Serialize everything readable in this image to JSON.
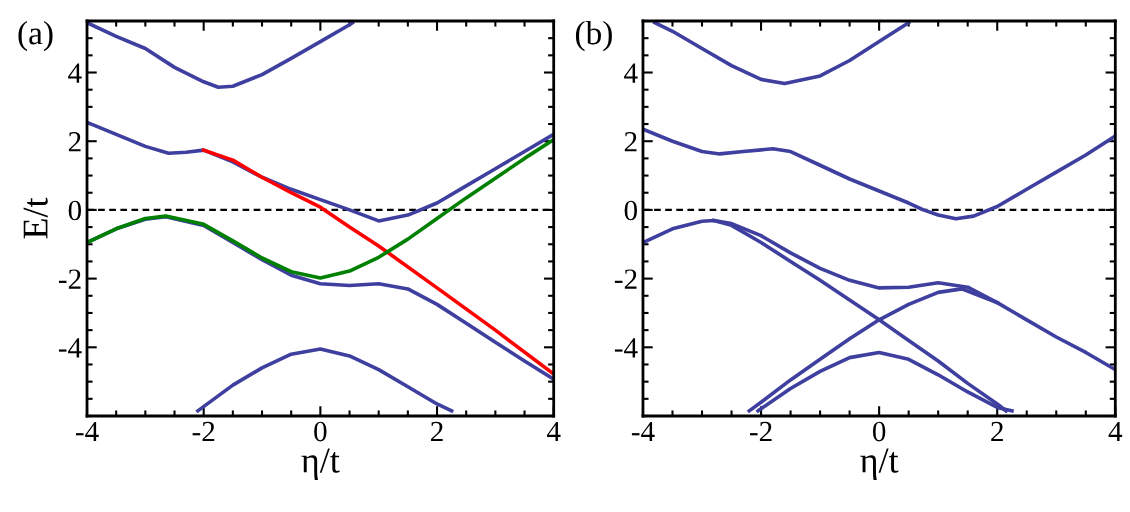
{
  "chart_data": [
    {
      "type": "line",
      "title": "(a)",
      "xlabel": "η/t",
      "ylabel": "E/t",
      "xlim": [
        -4,
        4
      ],
      "ylim": [
        -6,
        5.5
      ],
      "xticks": [
        -4,
        -2,
        0,
        2,
        4
      ],
      "yticks": [
        -4,
        -2,
        0,
        2,
        4
      ],
      "grid": false,
      "legend": false,
      "ref_lines": [
        {
          "axis": "y",
          "value": 0,
          "color": "#000000",
          "line_style": "dashed"
        }
      ],
      "series": [
        {
          "color": "#3f3f9f",
          "x": [
            -4,
            -3.5,
            -3,
            -2.5,
            -2,
            -1.75,
            -1.5,
            -1,
            -0.5,
            0,
            0.5,
            0.55
          ],
          "values": [
            5.45,
            5.05,
            4.7,
            4.15,
            3.73,
            3.57,
            3.6,
            3.94,
            4.41,
            4.9,
            5.39,
            5.45
          ]
        },
        {
          "color": "#3f3f9f",
          "x": [
            -4,
            -3.5,
            -3,
            -2.6,
            -2.3,
            -2,
            -1.5,
            -1,
            -0.5,
            0,
            0.5,
            1,
            1.5,
            2,
            2.5,
            3,
            3.5,
            4
          ],
          "values": [
            2.55,
            2.2,
            1.85,
            1.65,
            1.68,
            1.74,
            1.4,
            0.95,
            0.6,
            0.3,
            0.0,
            -0.32,
            -0.15,
            0.2,
            0.7,
            1.2,
            1.7,
            2.2
          ]
        },
        {
          "color": "#3f3f9f",
          "x": [
            -4,
            -3.5,
            -3,
            -2.65,
            -2,
            -1.5,
            -1,
            -0.5,
            0,
            0.5,
            1,
            1.5,
            2,
            2.5,
            3,
            3.5,
            4
          ],
          "values": [
            -0.95,
            -0.55,
            -0.27,
            -0.2,
            -0.45,
            -0.95,
            -1.45,
            -1.9,
            -2.15,
            -2.2,
            -2.15,
            -2.3,
            -2.75,
            -3.3,
            -3.85,
            -4.4,
            -4.93
          ]
        },
        {
          "color": "#3f3f9f",
          "x": [
            -2.1,
            -1.5,
            -1,
            -0.5,
            0,
            0.5,
            1,
            1.5,
            2,
            2.25
          ],
          "values": [
            -5.85,
            -5.1,
            -4.6,
            -4.2,
            -4.05,
            -4.25,
            -4.65,
            -5.15,
            -5.65,
            -5.85
          ]
        },
        {
          "color": "#ff0000",
          "x": [
            -2,
            -1.5,
            -1,
            -0.5,
            0,
            0.5,
            1,
            2,
            3,
            4
          ],
          "values": [
            1.74,
            1.45,
            0.95,
            0.5,
            0.08,
            -0.5,
            -1.05,
            -2.27,
            -3.5,
            -4.78
          ]
        },
        {
          "color": "#008000",
          "x": [
            -4,
            -3.5,
            -3,
            -2.65,
            -2,
            -1.5,
            -1,
            -0.5,
            0,
            0.5,
            1,
            1.5,
            2,
            2.5,
            3,
            3.5,
            4
          ],
          "values": [
            -0.95,
            -0.55,
            -0.25,
            -0.18,
            -0.42,
            -0.9,
            -1.4,
            -1.8,
            -1.98,
            -1.78,
            -1.38,
            -0.85,
            -0.25,
            0.35,
            0.92,
            1.5,
            2.05
          ]
        }
      ]
    },
    {
      "type": "line",
      "title": "(b)",
      "xlabel": "η/t",
      "xlim": [
        -4,
        4
      ],
      "ylim": [
        -6,
        5.5
      ],
      "xticks": [
        -4,
        -2,
        0,
        2,
        4
      ],
      "yticks": [
        -4,
        -2,
        0,
        2,
        4
      ],
      "grid": false,
      "legend": false,
      "ref_lines": [
        {
          "axis": "y",
          "value": 0,
          "color": "#000000",
          "line_style": "dashed"
        }
      ],
      "series": [
        {
          "color": "#3f3f9f",
          "x": [
            -3.8,
            -3.5,
            -3,
            -2.5,
            -2,
            -1.6,
            -1,
            -0.5,
            0,
            0.5
          ],
          "values": [
            5.45,
            5.2,
            4.7,
            4.2,
            3.8,
            3.68,
            3.9,
            4.35,
            4.9,
            5.45
          ]
        },
        {
          "color": "#3f3f9f",
          "x": [
            -4,
            -3.5,
            -3,
            -2.7,
            -2.3,
            -1.8,
            -1.5,
            -1,
            -0.5,
            0,
            0.5,
            0.75,
            1,
            1.3,
            1.6,
            2,
            2.5,
            3,
            3.5,
            4
          ],
          "values": [
            2.35,
            2.0,
            1.7,
            1.63,
            1.7,
            1.78,
            1.7,
            1.3,
            0.9,
            0.55,
            0.2,
            0,
            -0.15,
            -0.26,
            -0.18,
            0.1,
            0.6,
            1.1,
            1.6,
            2.15
          ]
        },
        {
          "color": "#3f3f9f",
          "x": [
            -4,
            -3.5,
            -3,
            -2.8,
            -2.5,
            -2,
            -1.5,
            -1,
            -0.5,
            0,
            0.5,
            1,
            1.5,
            2,
            2.5,
            3,
            3.5,
            4
          ],
          "values": [
            -0.95,
            -0.55,
            -0.33,
            -0.31,
            -0.4,
            -0.75,
            -1.25,
            -1.7,
            -2.05,
            -2.27,
            -2.25,
            -2.12,
            -2.25,
            -2.7,
            -3.2,
            -3.7,
            -4.15,
            -4.65
          ]
        },
        {
          "color": "#3f3f9f",
          "x": [
            -2.05,
            -1.5,
            -1,
            -0.5,
            0,
            0.5,
            1,
            1.5,
            2,
            2.25
          ],
          "values": [
            -5.85,
            -5.2,
            -4.7,
            -4.3,
            -4.15,
            -4.35,
            -4.8,
            -5.3,
            -5.75,
            -5.85
          ]
        },
        {
          "color": "#3f3f9f",
          "x": [
            -2.8,
            -2.5,
            -2,
            -1.5,
            -1,
            -0.5,
            0,
            0.5,
            1,
            1.5,
            2,
            2.15
          ],
          "values": [
            -0.31,
            -0.45,
            -0.95,
            -1.5,
            -2.05,
            -2.62,
            -3.2,
            -3.8,
            -4.4,
            -5.05,
            -5.65,
            -5.85
          ]
        },
        {
          "color": "#3f3f9f",
          "x": [
            -2.2,
            -2,
            -1.5,
            -1,
            -0.5,
            0,
            0.5,
            1,
            1.4,
            2
          ],
          "values": [
            -5.85,
            -5.6,
            -4.95,
            -4.35,
            -3.75,
            -3.2,
            -2.75,
            -2.4,
            -2.3,
            -2.7
          ]
        }
      ]
    }
  ]
}
